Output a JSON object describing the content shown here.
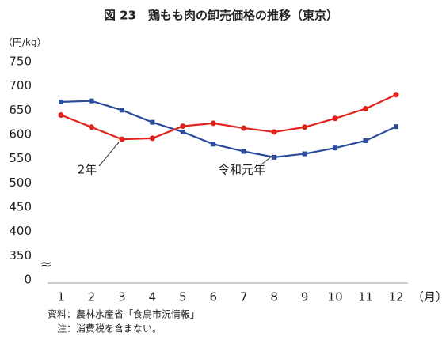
{
  "chart_data": {
    "type": "line",
    "title": "図 23　鶏もも肉の卸売価格の推移（東京）",
    "ylabel": "（円/kg）",
    "xlabel": "（月）",
    "categories": [
      1,
      2,
      3,
      4,
      5,
      6,
      7,
      8,
      9,
      10,
      11,
      12
    ],
    "series": [
      {
        "name": "令和元年",
        "color": "#2b4c9b",
        "marker": "square",
        "values": [
          667,
          669,
          650,
          625,
          605,
          580,
          565,
          553,
          560,
          572,
          587,
          616
        ]
      },
      {
        "name": "2年",
        "color": "#e0231c",
        "marker": "circle",
        "values": [
          640,
          615,
          590,
          592,
          617,
          623,
          613,
          605,
          615,
          633,
          653,
          682
        ]
      }
    ],
    "ylim": [
      0,
      750
    ],
    "y_break": [
      0,
      300
    ],
    "yticks": [
      0,
      350,
      400,
      450,
      500,
      550,
      600,
      650,
      700,
      750
    ],
    "notes": [
      "資料：農林水産省「食鳥市況情報」",
      "注：消費税を含まない。"
    ]
  }
}
